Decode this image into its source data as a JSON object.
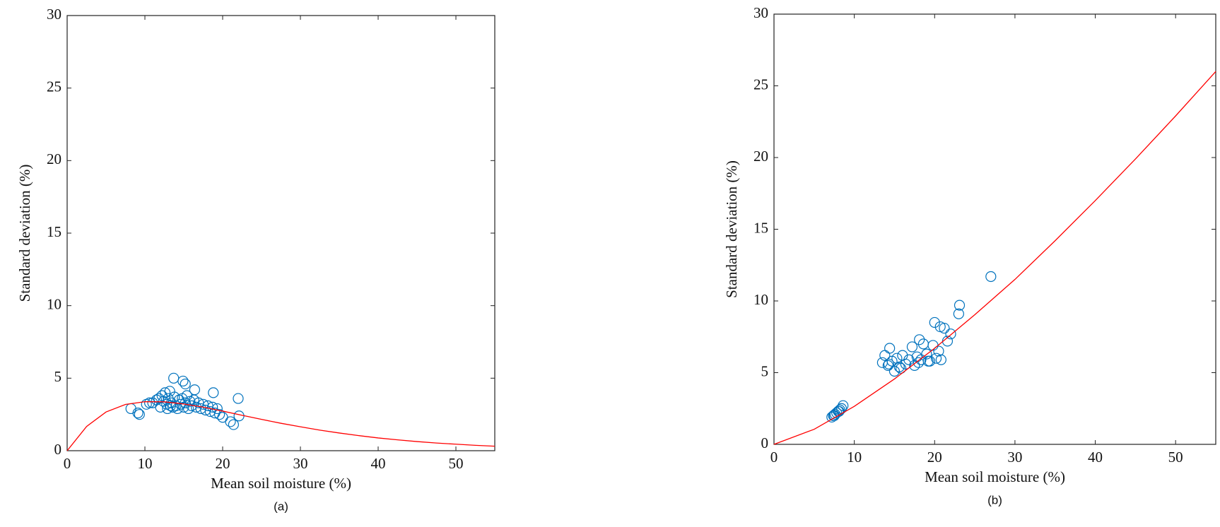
{
  "chart_data": [
    {
      "type": "scatter",
      "caption": "(a)",
      "xlabel": "Mean soil moisture (%)",
      "ylabel": "Standard deviation (%)",
      "xlim": [
        0,
        55
      ],
      "ylim": [
        0,
        30
      ],
      "xticks": [
        0,
        10,
        20,
        30,
        40,
        50
      ],
      "yticks": [
        0,
        5,
        10,
        15,
        20,
        25,
        30
      ],
      "series": [
        {
          "type": "scatter",
          "color": "#0072bd",
          "x": [
            8.2,
            9.1,
            9.3,
            10.2,
            10.6,
            11.0,
            11.5,
            11.8,
            12.0,
            12.2,
            12.4,
            12.6,
            12.8,
            13.0,
            13.2,
            13.4,
            13.6,
            13.8,
            14.0,
            14.2,
            14.4,
            14.6,
            14.8,
            15.0,
            15.2,
            15.4,
            15.6,
            15.8,
            16.0,
            16.3,
            16.6,
            16.9,
            17.2,
            17.5,
            17.8,
            18.1,
            18.4,
            18.7,
            19.0,
            19.3,
            19.6,
            20.0,
            21.0,
            21.4,
            22.0,
            22.1,
            13.7,
            14.9,
            15.2,
            16.4,
            18.8,
            12.9,
            13.3
          ],
          "values": [
            2.9,
            2.6,
            2.5,
            3.2,
            3.3,
            3.3,
            3.5,
            3.6,
            3.0,
            3.8,
            3.4,
            4.0,
            3.2,
            3.6,
            4.1,
            3.3,
            3.0,
            3.7,
            3.1,
            2.9,
            3.5,
            3.2,
            3.6,
            3.0,
            3.3,
            3.8,
            2.9,
            3.4,
            3.1,
            3.5,
            3.0,
            3.3,
            2.9,
            3.2,
            2.8,
            3.1,
            2.7,
            3.0,
            2.6,
            2.9,
            2.5,
            2.3,
            2.0,
            1.8,
            3.6,
            2.4,
            5.0,
            4.8,
            4.6,
            4.2,
            4.0,
            2.9,
            3.1
          ]
        },
        {
          "type": "line",
          "color": "#ff0000",
          "x": [
            0,
            2.5,
            5,
            7.5,
            10,
            12.5,
            15,
            17.5,
            20,
            22.5,
            25,
            27.5,
            30,
            32.5,
            35,
            37.5,
            40,
            42.5,
            45,
            47.5,
            50,
            52.5,
            55
          ],
          "values": [
            0,
            1.67,
            2.67,
            3.19,
            3.38,
            3.37,
            3.22,
            3.0,
            2.73,
            2.44,
            2.16,
            1.89,
            1.65,
            1.42,
            1.22,
            1.04,
            0.88,
            0.75,
            0.63,
            0.53,
            0.45,
            0.37,
            0.31
          ]
        }
      ]
    },
    {
      "type": "scatter",
      "caption": "(b)",
      "xlabel": "Mean soil moisture (%)",
      "ylabel": "Standard deviation (%)",
      "xlim": [
        0,
        55
      ],
      "ylim": [
        0,
        30
      ],
      "xticks": [
        0,
        10,
        20,
        30,
        40,
        50
      ],
      "yticks": [
        0,
        5,
        10,
        15,
        20,
        25,
        30
      ],
      "series": [
        {
          "type": "scatter",
          "color": "#0072bd",
          "x": [
            7.2,
            7.4,
            7.6,
            7.8,
            8.0,
            8.2,
            8.4,
            8.6,
            7.5,
            8.1,
            13.5,
            13.8,
            14.2,
            14.4,
            14.7,
            15.0,
            15.3,
            15.6,
            16.0,
            16.4,
            16.8,
            17.2,
            17.5,
            17.8,
            18.0,
            18.3,
            18.6,
            19.0,
            19.4,
            19.8,
            20.2,
            20.5,
            20.8,
            21.2,
            21.6,
            22.0,
            23.0,
            23.1,
            20.0,
            20.7,
            14.3,
            18.1,
            27.0,
            15.8,
            19.2
          ],
          "values": [
            1.9,
            2.0,
            2.1,
            2.2,
            2.3,
            2.4,
            2.5,
            2.7,
            2.0,
            2.3,
            5.7,
            6.2,
            5.5,
            6.7,
            5.8,
            5.1,
            6.0,
            5.4,
            6.2,
            5.6,
            5.9,
            6.8,
            5.5,
            6.1,
            5.7,
            5.9,
            7.0,
            6.3,
            5.8,
            6.9,
            6.0,
            6.5,
            5.9,
            8.1,
            7.2,
            7.7,
            9.1,
            9.7,
            8.5,
            8.2,
            5.6,
            7.3,
            11.7,
            5.3,
            5.8
          ]
        },
        {
          "type": "line",
          "color": "#ff0000",
          "x": [
            0,
            5,
            10,
            15,
            20,
            25,
            30,
            35,
            40,
            45,
            50,
            55
          ],
          "values": [
            0,
            1.05,
            2.65,
            4.56,
            6.7,
            9.04,
            11.5,
            14.2,
            17.0,
            19.9,
            22.9,
            26.0
          ]
        }
      ]
    }
  ]
}
